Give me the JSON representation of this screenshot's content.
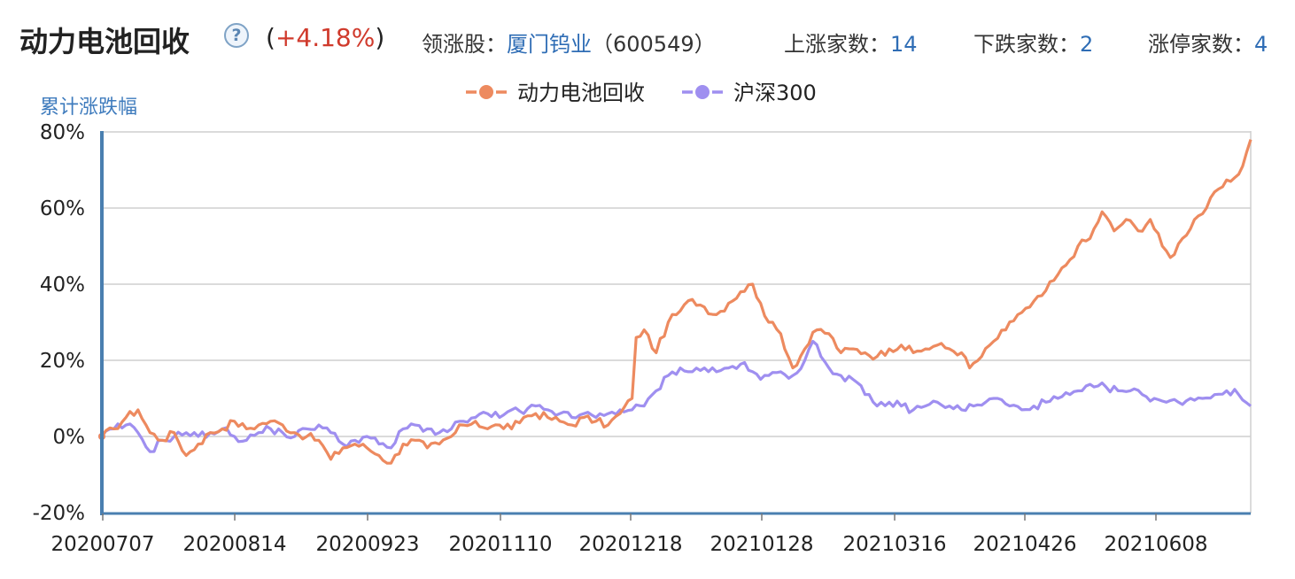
{
  "header": {
    "title": "动力电池回收",
    "help_icon": "question-circle-icon",
    "change_open": "(",
    "change_value": "+4.18%",
    "change_close": ")",
    "leader_label": "领涨股：",
    "leader_name": "厦门钨业",
    "leader_code": "（600549）",
    "up_label": "上涨家数：",
    "up_value": "14",
    "down_label": "下跌家数：",
    "down_value": "2",
    "limitup_label": "涨停家数：",
    "limitup_value": "4"
  },
  "colors": {
    "series1": "#ed8a5f",
    "series2": "#9f8ff0",
    "axis": "#4a7fb0",
    "grid": "#cfcfcf",
    "up": "#d03a2c",
    "link": "#2f6db5"
  },
  "chart_data": {
    "type": "line",
    "ylabel": "累计涨跌幅",
    "y_ticks": [
      -20,
      0,
      20,
      40,
      60,
      80
    ],
    "y_tick_labels": [
      "-20%",
      "0%",
      "20%",
      "40%",
      "60%",
      "80%"
    ],
    "ylim": [
      -20,
      82
    ],
    "x_tick_labels": [
      "20200707",
      "20200814",
      "20200923",
      "20201110",
      "20201218",
      "20210128",
      "20210316",
      "20210426",
      "20210608"
    ],
    "x_tick_indices": [
      0,
      28,
      56,
      84,
      112,
      140,
      168,
      196,
      224
    ],
    "n_points": 245,
    "grid": true,
    "legend_position": "top-center",
    "series": [
      {
        "name": "动力电池回收",
        "anchors": [
          [
            0,
            0
          ],
          [
            3,
            2
          ],
          [
            6,
            5
          ],
          [
            9,
            7
          ],
          [
            12,
            1
          ],
          [
            15,
            -1
          ],
          [
            18,
            1
          ],
          [
            21,
            -5
          ],
          [
            24,
            -2
          ],
          [
            27,
            1
          ],
          [
            30,
            2
          ],
          [
            33,
            4
          ],
          [
            36,
            2
          ],
          [
            39,
            3
          ],
          [
            42,
            4
          ],
          [
            45,
            3
          ],
          [
            48,
            1
          ],
          [
            51,
            0
          ],
          [
            54,
            -1
          ],
          [
            57,
            -6
          ],
          [
            60,
            -3
          ],
          [
            63,
            -2
          ],
          [
            66,
            -3
          ],
          [
            69,
            -5
          ],
          [
            72,
            -7
          ],
          [
            75,
            -2
          ],
          [
            78,
            -1
          ],
          [
            81,
            -3
          ],
          [
            84,
            -2
          ],
          [
            87,
            0
          ],
          [
            90,
            3
          ],
          [
            93,
            4
          ],
          [
            96,
            2
          ],
          [
            99,
            3
          ],
          [
            102,
            2
          ],
          [
            105,
            5
          ],
          [
            108,
            6
          ],
          [
            111,
            5
          ],
          [
            114,
            4
          ],
          [
            117,
            3
          ],
          [
            120,
            5
          ],
          [
            123,
            4
          ],
          [
            126,
            3
          ],
          [
            129,
            6
          ],
          [
            132,
            10
          ],
          [
            133,
            26
          ],
          [
            135,
            28
          ],
          [
            138,
            22
          ],
          [
            141,
            30
          ],
          [
            144,
            33
          ],
          [
            147,
            36
          ],
          [
            150,
            34
          ],
          [
            153,
            32
          ],
          [
            156,
            35
          ],
          [
            159,
            38
          ],
          [
            162,
            40
          ],
          [
            164,
            35
          ],
          [
            166,
            30
          ],
          [
            169,
            27
          ],
          [
            172,
            18
          ],
          [
            175,
            23
          ],
          [
            178,
            28
          ],
          [
            181,
            27
          ],
          [
            184,
            22
          ],
          [
            187,
            23
          ],
          [
            190,
            22
          ],
          [
            193,
            21
          ],
          [
            196,
            23
          ],
          [
            199,
            24
          ],
          [
            202,
            22
          ],
          [
            205,
            23
          ],
          [
            208,
            24
          ],
          [
            211,
            23
          ],
          [
            214,
            22
          ],
          [
            216,
            18
          ],
          [
            219,
            21
          ],
          [
            222,
            25
          ],
          [
            225,
            28
          ],
          [
            228,
            32
          ],
          [
            231,
            34
          ],
          [
            234,
            37
          ],
          [
            237,
            41
          ],
          [
            240,
            45
          ],
          [
            243,
            50
          ],
          [
            246,
            52
          ],
          [
            249,
            59
          ],
          [
            252,
            54
          ],
          [
            255,
            57
          ],
          [
            258,
            54
          ],
          [
            261,
            57
          ],
          [
            264,
            50
          ],
          [
            266,
            47
          ],
          [
            269,
            52
          ],
          [
            272,
            57
          ],
          [
            275,
            60
          ],
          [
            278,
            65
          ],
          [
            281,
            67
          ],
          [
            284,
            71
          ],
          [
            286,
            78
          ]
        ]
      },
      {
        "name": "沪深300",
        "anchors": [
          [
            0,
            0
          ],
          [
            3,
            2
          ],
          [
            6,
            3
          ],
          [
            9,
            1
          ],
          [
            12,
            -4
          ],
          [
            15,
            -1
          ],
          [
            18,
            0
          ],
          [
            21,
            1
          ],
          [
            24,
            0
          ],
          [
            27,
            1
          ],
          [
            30,
            2
          ],
          [
            33,
            0
          ],
          [
            36,
            -1
          ],
          [
            39,
            1
          ],
          [
            42,
            2
          ],
          [
            45,
            1
          ],
          [
            48,
            0
          ],
          [
            51,
            2
          ],
          [
            54,
            3
          ],
          [
            57,
            1
          ],
          [
            60,
            -2
          ],
          [
            63,
            -1
          ],
          [
            66,
            0
          ],
          [
            69,
            -2
          ],
          [
            72,
            -3
          ],
          [
            75,
            2
          ],
          [
            78,
            3
          ],
          [
            81,
            2
          ],
          [
            84,
            1
          ],
          [
            87,
            2
          ],
          [
            90,
            4
          ],
          [
            93,
            5
          ],
          [
            96,
            6
          ],
          [
            99,
            5
          ],
          [
            102,
            7
          ],
          [
            105,
            6
          ],
          [
            108,
            8
          ],
          [
            111,
            7
          ],
          [
            114,
            6
          ],
          [
            117,
            5
          ],
          [
            120,
            6
          ],
          [
            123,
            5
          ],
          [
            126,
            6
          ],
          [
            129,
            7
          ],
          [
            132,
            7
          ],
          [
            135,
            8
          ],
          [
            138,
            12
          ],
          [
            141,
            16
          ],
          [
            144,
            18
          ],
          [
            147,
            17
          ],
          [
            150,
            18
          ],
          [
            153,
            17
          ],
          [
            156,
            18
          ],
          [
            159,
            19
          ],
          [
            162,
            17
          ],
          [
            164,
            15
          ],
          [
            166,
            16
          ],
          [
            169,
            17
          ],
          [
            172,
            16
          ],
          [
            175,
            20
          ],
          [
            177,
            25
          ],
          [
            179,
            21
          ],
          [
            181,
            18
          ],
          [
            184,
            16
          ],
          [
            187,
            15
          ],
          [
            190,
            11
          ],
          [
            193,
            8
          ],
          [
            196,
            9
          ],
          [
            199,
            8
          ],
          [
            202,
            7
          ],
          [
            205,
            8
          ],
          [
            208,
            9
          ],
          [
            211,
            8
          ],
          [
            214,
            7
          ],
          [
            217,
            8
          ],
          [
            220,
            9
          ],
          [
            223,
            10
          ],
          [
            226,
            8
          ],
          [
            229,
            7
          ],
          [
            232,
            8
          ],
          [
            235,
            9
          ],
          [
            238,
            10
          ],
          [
            241,
            11
          ],
          [
            244,
            12
          ],
          [
            247,
            13
          ],
          [
            250,
            13
          ],
          [
            253,
            12
          ],
          [
            256,
            12
          ],
          [
            259,
            11
          ],
          [
            262,
            10
          ],
          [
            265,
            9
          ],
          [
            268,
            9
          ],
          [
            271,
            10
          ],
          [
            274,
            10
          ],
          [
            277,
            11
          ],
          [
            280,
            12
          ],
          [
            283,
            11
          ],
          [
            286,
            8
          ]
        ]
      }
    ]
  }
}
